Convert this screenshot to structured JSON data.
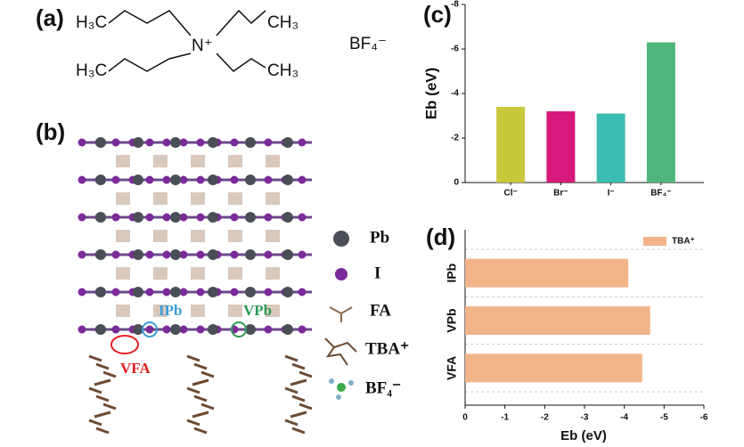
{
  "figure": {
    "panel_a": {
      "label": "(a)",
      "groups": [
        "H₃C",
        "CH₃",
        "H₃C",
        "CH₃"
      ],
      "center": "N⁺",
      "anion": "BF₄⁻"
    },
    "panel_b": {
      "label": "(b)",
      "legend": [
        "Pb",
        "I",
        "FA",
        "TBA⁺",
        "BF₄⁻"
      ],
      "defects": [
        "IPb",
        "VPb",
        "VFA"
      ]
    }
  },
  "chart_data": [
    {
      "type": "bar",
      "panel_label": "(c)",
      "ylabel": "Eb (eV)",
      "categories": [
        "Cl⁻",
        "Br⁻",
        "I⁻",
        "BF₄⁻"
      ],
      "values": [
        -3.4,
        -3.2,
        -3.1,
        -6.3
      ],
      "colors": [
        "#c9c83b",
        "#d6197a",
        "#3dbdb2",
        "#4db77b"
      ],
      "ylim": [
        0,
        -8
      ],
      "yticks": [
        0,
        -2,
        -4,
        -6,
        -8
      ]
    },
    {
      "type": "hbar",
      "panel_label": "(d)",
      "xlabel": "Eb (eV)",
      "categories": [
        "IPb",
        "VPb",
        "VFA"
      ],
      "series": [
        {
          "name": "TBA⁺",
          "color": "#f2b489",
          "values": [
            -4.1,
            -4.65,
            -4.45
          ]
        }
      ],
      "xlim": [
        0,
        -6
      ],
      "xticks": [
        0,
        -1,
        -2,
        -3,
        -4,
        -5,
        -6
      ],
      "grid": true,
      "legend": "top-right"
    }
  ]
}
